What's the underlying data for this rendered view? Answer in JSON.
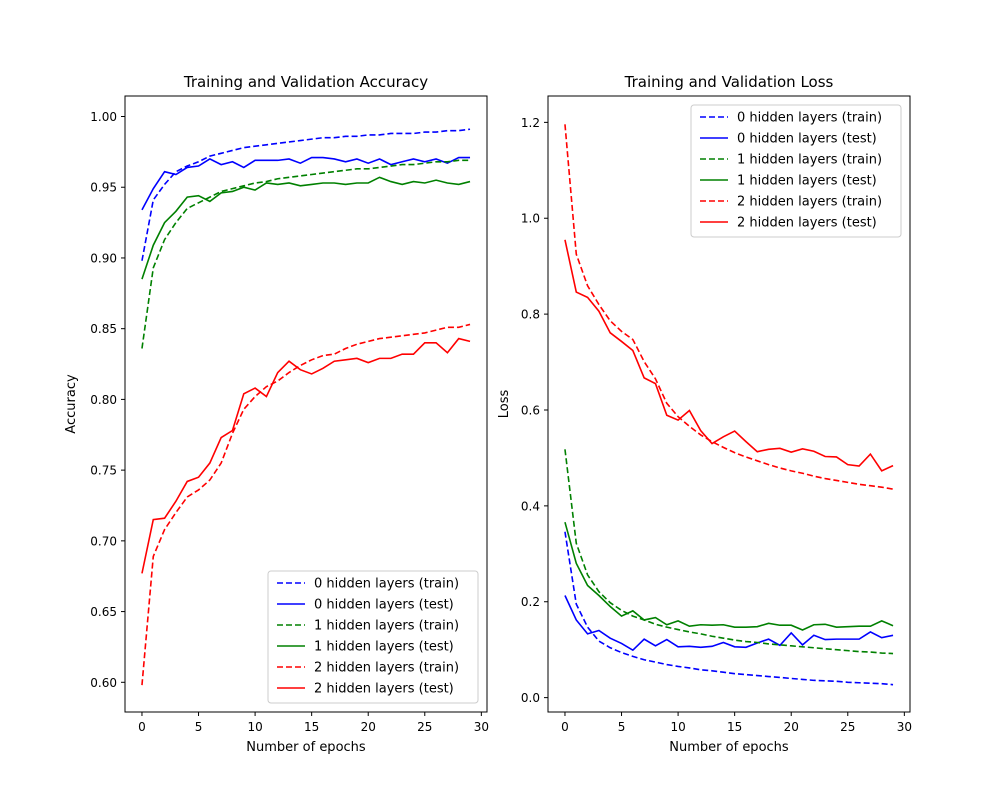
{
  "chart_data": [
    {
      "type": "line",
      "title": "Training and Validation Accuracy",
      "xlabel": "Number of epochs",
      "ylabel": "Accuracy",
      "xlim": [
        -1.5,
        30.5
      ],
      "ylim": [
        0.579,
        1.0145
      ],
      "xticks": [
        0,
        5,
        10,
        15,
        20,
        25,
        30
      ],
      "yticks": [
        0.6,
        0.65,
        0.7,
        0.75,
        0.8,
        0.85,
        0.9,
        0.95,
        1.0
      ],
      "ytick_format": 2,
      "grid": false,
      "legend_position": "lower-right",
      "series": [
        {
          "name": "0 hidden layers (train)",
          "color": "#0000ff",
          "dash": true,
          "values": [
            0.898,
            0.941,
            0.952,
            0.961,
            0.965,
            0.968,
            0.972,
            0.974,
            0.976,
            0.978,
            0.979,
            0.98,
            0.981,
            0.982,
            0.983,
            0.984,
            0.985,
            0.985,
            0.986,
            0.986,
            0.987,
            0.987,
            0.988,
            0.988,
            0.988,
            0.989,
            0.989,
            0.99,
            0.99,
            0.991
          ]
        },
        {
          "name": "0 hidden layers (test)",
          "color": "#0000ff",
          "dash": false,
          "values": [
            0.934,
            0.949,
            0.961,
            0.959,
            0.964,
            0.965,
            0.97,
            0.966,
            0.968,
            0.964,
            0.969,
            0.969,
            0.969,
            0.97,
            0.967,
            0.971,
            0.971,
            0.97,
            0.968,
            0.97,
            0.967,
            0.97,
            0.966,
            0.968,
            0.97,
            0.968,
            0.97,
            0.967,
            0.971,
            0.971
          ]
        },
        {
          "name": "1 hidden layers (train)",
          "color": "#008000",
          "dash": true,
          "values": [
            0.836,
            0.893,
            0.913,
            0.925,
            0.935,
            0.939,
            0.943,
            0.947,
            0.949,
            0.951,
            0.953,
            0.954,
            0.956,
            0.957,
            0.958,
            0.959,
            0.96,
            0.961,
            0.962,
            0.963,
            0.963,
            0.964,
            0.965,
            0.966,
            0.966,
            0.967,
            0.968,
            0.968,
            0.969,
            0.969
          ]
        },
        {
          "name": "1 hidden layers (test)",
          "color": "#008000",
          "dash": false,
          "values": [
            0.885,
            0.909,
            0.925,
            0.933,
            0.943,
            0.944,
            0.94,
            0.946,
            0.947,
            0.95,
            0.948,
            0.953,
            0.952,
            0.953,
            0.951,
            0.952,
            0.953,
            0.953,
            0.952,
            0.953,
            0.953,
            0.957,
            0.954,
            0.952,
            0.954,
            0.953,
            0.955,
            0.953,
            0.952,
            0.954
          ]
        },
        {
          "name": "2 hidden layers (train)",
          "color": "#ff0000",
          "dash": true,
          "values": [
            0.598,
            0.689,
            0.708,
            0.72,
            0.731,
            0.736,
            0.743,
            0.755,
            0.776,
            0.793,
            0.802,
            0.809,
            0.813,
            0.819,
            0.824,
            0.828,
            0.831,
            0.832,
            0.836,
            0.839,
            0.841,
            0.843,
            0.844,
            0.845,
            0.846,
            0.847,
            0.849,
            0.851,
            0.851,
            0.853
          ]
        },
        {
          "name": "2 hidden layers (test)",
          "color": "#ff0000",
          "dash": false,
          "values": [
            0.677,
            0.715,
            0.716,
            0.728,
            0.742,
            0.745,
            0.755,
            0.773,
            0.778,
            0.804,
            0.808,
            0.802,
            0.819,
            0.827,
            0.821,
            0.818,
            0.822,
            0.827,
            0.828,
            0.829,
            0.826,
            0.829,
            0.829,
            0.832,
            0.832,
            0.84,
            0.84,
            0.833,
            0.843,
            0.841
          ]
        }
      ]
    },
    {
      "type": "line",
      "title": "Training and Validation Loss",
      "xlabel": "Number of epochs",
      "ylabel": "Loss",
      "xlim": [
        -1.5,
        30.5
      ],
      "ylim": [
        -0.03,
        1.255
      ],
      "xticks": [
        0,
        5,
        10,
        15,
        20,
        25,
        30
      ],
      "yticks": [
        0.0,
        0.2,
        0.4,
        0.6,
        0.8,
        1.0,
        1.2
      ],
      "ytick_format": 1,
      "grid": false,
      "legend_position": "upper-right",
      "series": [
        {
          "name": "0 hidden layers (train)",
          "color": "#0000ff",
          "dash": true,
          "values": [
            0.346,
            0.195,
            0.147,
            0.118,
            0.104,
            0.094,
            0.086,
            0.079,
            0.074,
            0.069,
            0.065,
            0.062,
            0.058,
            0.056,
            0.053,
            0.05,
            0.048,
            0.046,
            0.044,
            0.042,
            0.04,
            0.038,
            0.036,
            0.035,
            0.034,
            0.032,
            0.031,
            0.03,
            0.029,
            0.027
          ]
        },
        {
          "name": "0 hidden layers (test)",
          "color": "#0000ff",
          "dash": false,
          "values": [
            0.213,
            0.162,
            0.133,
            0.14,
            0.124,
            0.113,
            0.099,
            0.122,
            0.108,
            0.121,
            0.106,
            0.107,
            0.105,
            0.107,
            0.115,
            0.106,
            0.105,
            0.114,
            0.122,
            0.109,
            0.135,
            0.11,
            0.13,
            0.121,
            0.122,
            0.122,
            0.122,
            0.137,
            0.125,
            0.13
          ]
        },
        {
          "name": "1 hidden layers (train)",
          "color": "#008000",
          "dash": true,
          "values": [
            0.518,
            0.322,
            0.256,
            0.221,
            0.198,
            0.182,
            0.17,
            0.162,
            0.153,
            0.147,
            0.142,
            0.137,
            0.133,
            0.128,
            0.124,
            0.12,
            0.117,
            0.115,
            0.112,
            0.11,
            0.108,
            0.106,
            0.104,
            0.102,
            0.1,
            0.098,
            0.096,
            0.095,
            0.093,
            0.092
          ]
        },
        {
          "name": "1 hidden layers (test)",
          "color": "#008000",
          "dash": false,
          "values": [
            0.366,
            0.28,
            0.234,
            0.213,
            0.19,
            0.17,
            0.181,
            0.162,
            0.167,
            0.152,
            0.16,
            0.149,
            0.152,
            0.151,
            0.152,
            0.147,
            0.147,
            0.148,
            0.155,
            0.151,
            0.151,
            0.141,
            0.152,
            0.153,
            0.147,
            0.148,
            0.149,
            0.149,
            0.16,
            0.15
          ]
        },
        {
          "name": "2 hidden layers (train)",
          "color": "#ff0000",
          "dash": true,
          "values": [
            1.196,
            0.925,
            0.859,
            0.82,
            0.786,
            0.764,
            0.747,
            0.701,
            0.665,
            0.614,
            0.586,
            0.566,
            0.548,
            0.534,
            0.522,
            0.511,
            0.502,
            0.494,
            0.486,
            0.479,
            0.473,
            0.468,
            0.462,
            0.457,
            0.453,
            0.449,
            0.445,
            0.442,
            0.439,
            0.435
          ]
        },
        {
          "name": "2 hidden layers (test)",
          "color": "#ff0000",
          "dash": false,
          "values": [
            0.955,
            0.846,
            0.835,
            0.806,
            0.761,
            0.743,
            0.724,
            0.667,
            0.655,
            0.589,
            0.579,
            0.599,
            0.557,
            0.53,
            0.544,
            0.556,
            0.534,
            0.513,
            0.518,
            0.52,
            0.512,
            0.519,
            0.514,
            0.503,
            0.502,
            0.486,
            0.483,
            0.508,
            0.473,
            0.484
          ]
        }
      ]
    }
  ]
}
